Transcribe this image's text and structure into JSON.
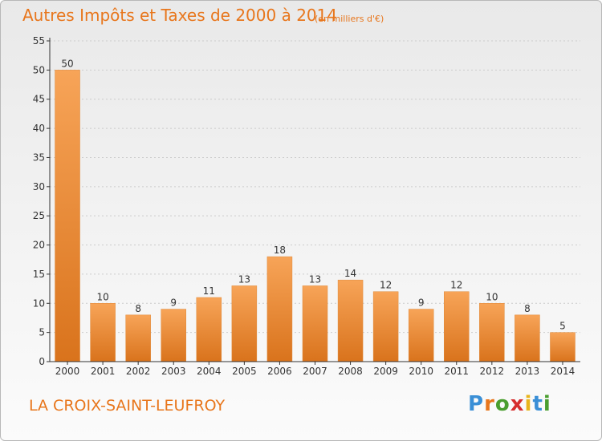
{
  "header": {
    "title": "Autres Impôts et Taxes de 2000 à 2014",
    "subtitle": "(en milliers d'€)"
  },
  "footer": {
    "commune": "LA CROIX-SAINT-LEUFROY",
    "brand": "Proxiti"
  },
  "colors": {
    "bar_light": "#f7a458",
    "bar_dark": "#d9731c",
    "title": "#e8761c",
    "axis": "#333333",
    "grid": "#cccccc"
  },
  "chart_data": {
    "type": "bar",
    "categories": [
      "2000",
      "2001",
      "2002",
      "2003",
      "2004",
      "2005",
      "2006",
      "2007",
      "2008",
      "2009",
      "2010",
      "2011",
      "2012",
      "2013",
      "2014"
    ],
    "values": [
      50,
      10,
      8,
      9,
      11,
      13,
      18,
      13,
      14,
      12,
      9,
      12,
      10,
      8,
      5
    ],
    "title": "Autres Impôts et Taxes de 2000 à 2014",
    "subtitle": "(en milliers d'€)",
    "ylim": [
      0,
      55
    ],
    "yticks": [
      0,
      5,
      10,
      15,
      20,
      25,
      30,
      35,
      40,
      45,
      50,
      55
    ],
    "grid": true
  }
}
